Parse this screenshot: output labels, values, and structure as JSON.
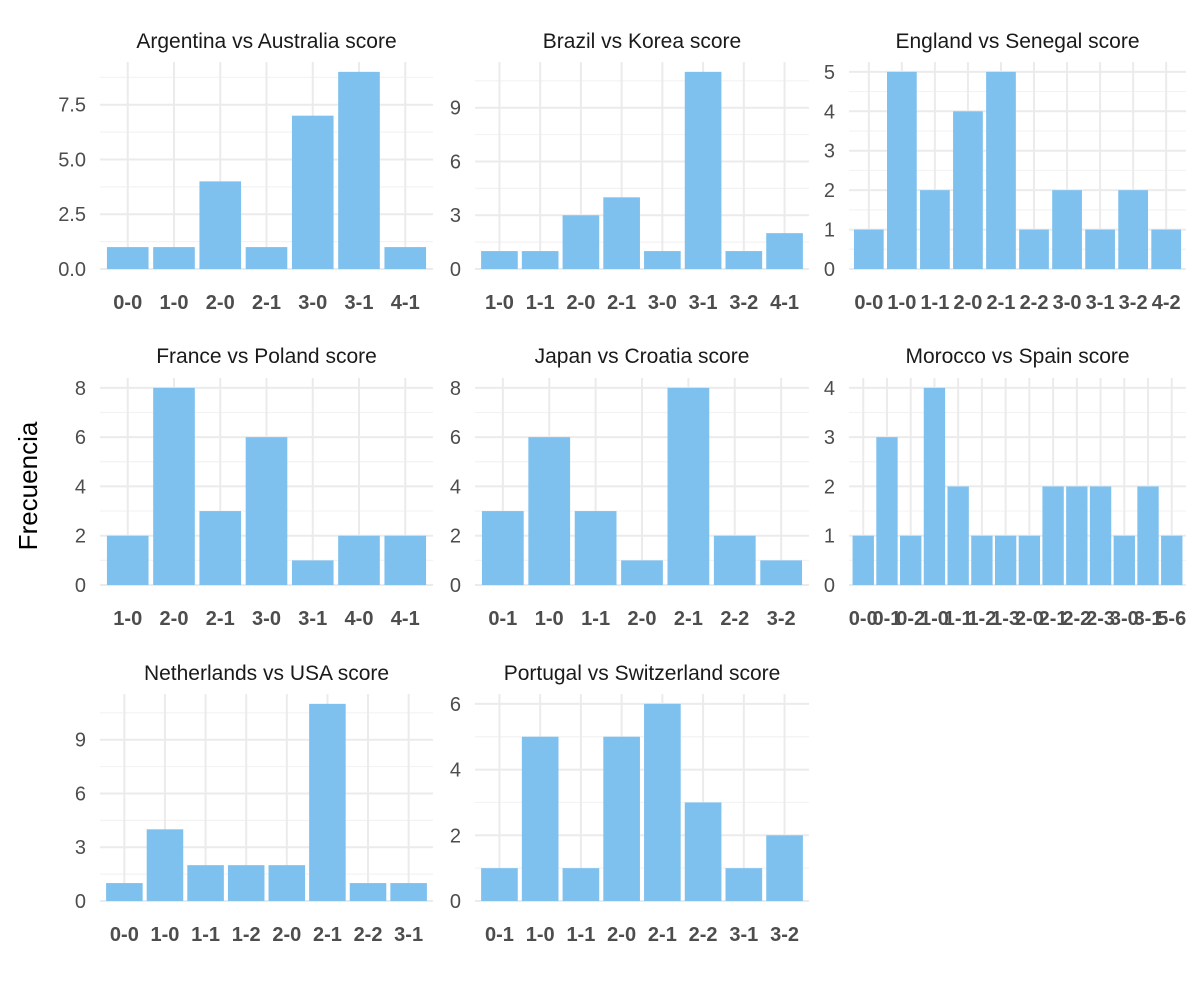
{
  "chart_data": {
    "type": "bar",
    "layout": "facet-grid",
    "ylabel": "Frecuencia",
    "bar_color": "#7FC1EE",
    "grid": true,
    "panels": [
      {
        "title": "Argentina vs Australia score",
        "categories": [
          "0-0",
          "1-0",
          "2-0",
          "2-1",
          "3-0",
          "3-1",
          "4-1"
        ],
        "values": [
          1,
          1,
          4,
          1,
          7,
          9,
          1
        ],
        "ylim": [
          0,
          9.45
        ],
        "yticks": [
          0,
          2.5,
          5,
          7.5
        ],
        "ytick_labels": [
          "0.0",
          "2.5",
          "5.0",
          "7.5"
        ]
      },
      {
        "title": "Brazil vs Korea score",
        "categories": [
          "1-0",
          "1-1",
          "2-0",
          "2-1",
          "3-0",
          "3-1",
          "3-2",
          "4-1"
        ],
        "values": [
          1,
          1,
          3,
          4,
          1,
          11,
          1,
          2
        ],
        "ylim": [
          0,
          11.55
        ],
        "yticks": [
          0,
          3,
          6,
          9
        ],
        "ytick_labels": [
          "0",
          "3",
          "6",
          "9"
        ]
      },
      {
        "title": "England vs Senegal score",
        "categories": [
          "0-0",
          "1-0",
          "1-1",
          "2-0",
          "2-1",
          "2-2",
          "3-0",
          "3-1",
          "3-2",
          "4-2"
        ],
        "values": [
          1,
          5,
          2,
          4,
          5,
          1,
          2,
          1,
          2,
          1
        ],
        "ylim": [
          0,
          5.25
        ],
        "yticks": [
          0,
          1,
          2,
          3,
          4,
          5
        ],
        "ytick_labels": [
          "0",
          "1",
          "2",
          "3",
          "4",
          "5"
        ]
      },
      {
        "title": "France vs Poland score",
        "categories": [
          "1-0",
          "2-0",
          "2-1",
          "3-0",
          "3-1",
          "4-0",
          "4-1"
        ],
        "values": [
          2,
          8,
          3,
          6,
          1,
          2,
          2
        ],
        "ylim": [
          0,
          8.4
        ],
        "yticks": [
          0,
          2,
          4,
          6,
          8
        ],
        "ytick_labels": [
          "0",
          "2",
          "4",
          "6",
          "8"
        ]
      },
      {
        "title": "Japan vs Croatia score",
        "categories": [
          "0-1",
          "1-0",
          "1-1",
          "2-0",
          "2-1",
          "2-2",
          "3-2"
        ],
        "values": [
          3,
          6,
          3,
          1,
          8,
          2,
          1
        ],
        "ylim": [
          0,
          8.4
        ],
        "yticks": [
          0,
          2,
          4,
          6,
          8
        ],
        "ytick_labels": [
          "0",
          "2",
          "4",
          "6",
          "8"
        ]
      },
      {
        "title": "Morocco vs Spain score",
        "categories": [
          "0-0",
          "0-1",
          "0-2",
          "1-0",
          "1-1",
          "1-2",
          "1-3",
          "2-0",
          "2-1",
          "2-2",
          "2-3",
          "3-0",
          "3-1",
          "5-6"
        ],
        "values": [
          1,
          3,
          1,
          4,
          2,
          1,
          1,
          1,
          2,
          2,
          2,
          1,
          2,
          1
        ],
        "ylim": [
          0,
          4.2
        ],
        "yticks": [
          0,
          1,
          2,
          3,
          4
        ],
        "ytick_labels": [
          "0",
          "1",
          "2",
          "3",
          "4"
        ]
      },
      {
        "title": "Netherlands vs USA score",
        "categories": [
          "0-0",
          "1-0",
          "1-1",
          "1-2",
          "2-0",
          "2-1",
          "2-2",
          "3-1"
        ],
        "values": [
          1,
          4,
          2,
          2,
          2,
          11,
          1,
          1
        ],
        "ylim": [
          0,
          11.55
        ],
        "yticks": [
          0,
          3,
          6,
          9
        ],
        "ytick_labels": [
          "0",
          "3",
          "6",
          "9"
        ]
      },
      {
        "title": "Portugal vs Switzerland score",
        "categories": [
          "0-1",
          "1-0",
          "1-1",
          "2-0",
          "2-1",
          "2-2",
          "3-1",
          "3-2"
        ],
        "values": [
          1,
          5,
          1,
          5,
          6,
          3,
          1,
          2
        ],
        "ylim": [
          0,
          6.3
        ],
        "yticks": [
          0,
          2,
          4,
          6
        ],
        "ytick_labels": [
          "0",
          "2",
          "4",
          "6"
        ]
      }
    ]
  }
}
